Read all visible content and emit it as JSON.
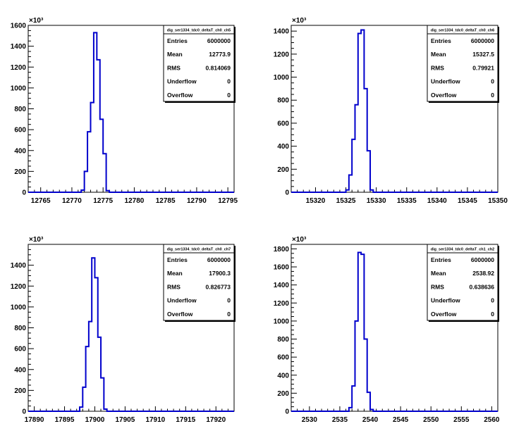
{
  "chart_data": [
    {
      "type": "histogram",
      "stats": {
        "title": "dig_ser1334_tdc0_deltaT_ch0_ch5",
        "rows": [
          {
            "label": "Entries",
            "value": "6000000"
          },
          {
            "label": "Mean",
            "value": "12773.9"
          },
          {
            "label": "RMS",
            "value": "0.814069"
          },
          {
            "label": "Underflow",
            "value": "0"
          },
          {
            "label": "Overflow",
            "value": "0"
          }
        ]
      },
      "xlim": [
        12763,
        12796
      ],
      "ylim": [
        0,
        1600
      ],
      "y_multiplier": "×10³",
      "xticks": [
        12765,
        12770,
        12775,
        12780,
        12785,
        12790,
        12795
      ],
      "yticks": [
        0,
        200,
        400,
        600,
        800,
        1000,
        1200,
        1400,
        1600
      ],
      "bin_width": 0.5,
      "bins_start": 12771.5,
      "counts": [
        20,
        200,
        580,
        860,
        1530,
        1270,
        700,
        370,
        15
      ]
    },
    {
      "type": "histogram",
      "stats": {
        "title": "dig_ser1334_tdc0_deltaT_ch0_ch6",
        "rows": [
          {
            "label": "Entries",
            "value": "6000000"
          },
          {
            "label": "Mean",
            "value": "15327.5"
          },
          {
            "label": "RMS",
            "value": "0.79921"
          },
          {
            "label": "Underflow",
            "value": "0"
          },
          {
            "label": "Overflow",
            "value": "0"
          }
        ]
      },
      "xlim": [
        15316,
        15350
      ],
      "ylim": [
        0,
        1450
      ],
      "y_multiplier": "×10³",
      "xticks": [
        15320,
        15325,
        15330,
        15335,
        15340,
        15345,
        15350
      ],
      "yticks": [
        0,
        200,
        400,
        600,
        800,
        1000,
        1200,
        1400
      ],
      "bin_width": 0.5,
      "bins_start": 15325,
      "counts": [
        20,
        150,
        460,
        760,
        1380,
        1410,
        900,
        360,
        20
      ]
    },
    {
      "type": "histogram",
      "stats": {
        "title": "dig_ser1334_tdc0_deltaT_ch0_ch7",
        "rows": [
          {
            "label": "Entries",
            "value": "6000000"
          },
          {
            "label": "Mean",
            "value": "17900.3"
          },
          {
            "label": "RMS",
            "value": "0.826773"
          },
          {
            "label": "Underflow",
            "value": "0"
          },
          {
            "label": "Overflow",
            "value": "0"
          }
        ]
      },
      "xlim": [
        17889,
        17923
      ],
      "ylim": [
        0,
        1600
      ],
      "y_multiplier": "×10³",
      "xticks": [
        17890,
        17895,
        17900,
        17905,
        17910,
        17915,
        17920
      ],
      "yticks": [
        0,
        200,
        400,
        600,
        800,
        1000,
        1200,
        1400
      ],
      "bin_width": 0.5,
      "bins_start": 17897.5,
      "counts": [
        40,
        230,
        620,
        860,
        1470,
        1280,
        710,
        320,
        20
      ]
    },
    {
      "type": "histogram",
      "stats": {
        "title": "dig_ser1334_tdc0_deltaT_ch1_ch2",
        "rows": [
          {
            "label": "Entries",
            "value": "6000000"
          },
          {
            "label": "Mean",
            "value": "2538.92"
          },
          {
            "label": "RMS",
            "value": "0.638636"
          },
          {
            "label": "Underflow",
            "value": "0"
          },
          {
            "label": "Overflow",
            "value": "0"
          }
        ]
      },
      "xlim": [
        2527,
        2561
      ],
      "ylim": [
        0,
        1850
      ],
      "y_multiplier": "×10³",
      "xticks": [
        2530,
        2535,
        2540,
        2545,
        2550,
        2555,
        2560
      ],
      "yticks": [
        0,
        200,
        400,
        600,
        800,
        1000,
        1200,
        1400,
        1600,
        1800
      ],
      "bin_width": 0.5,
      "bins_start": 2536.5,
      "counts": [
        40,
        280,
        1000,
        1760,
        1740,
        800,
        210,
        20
      ]
    }
  ]
}
